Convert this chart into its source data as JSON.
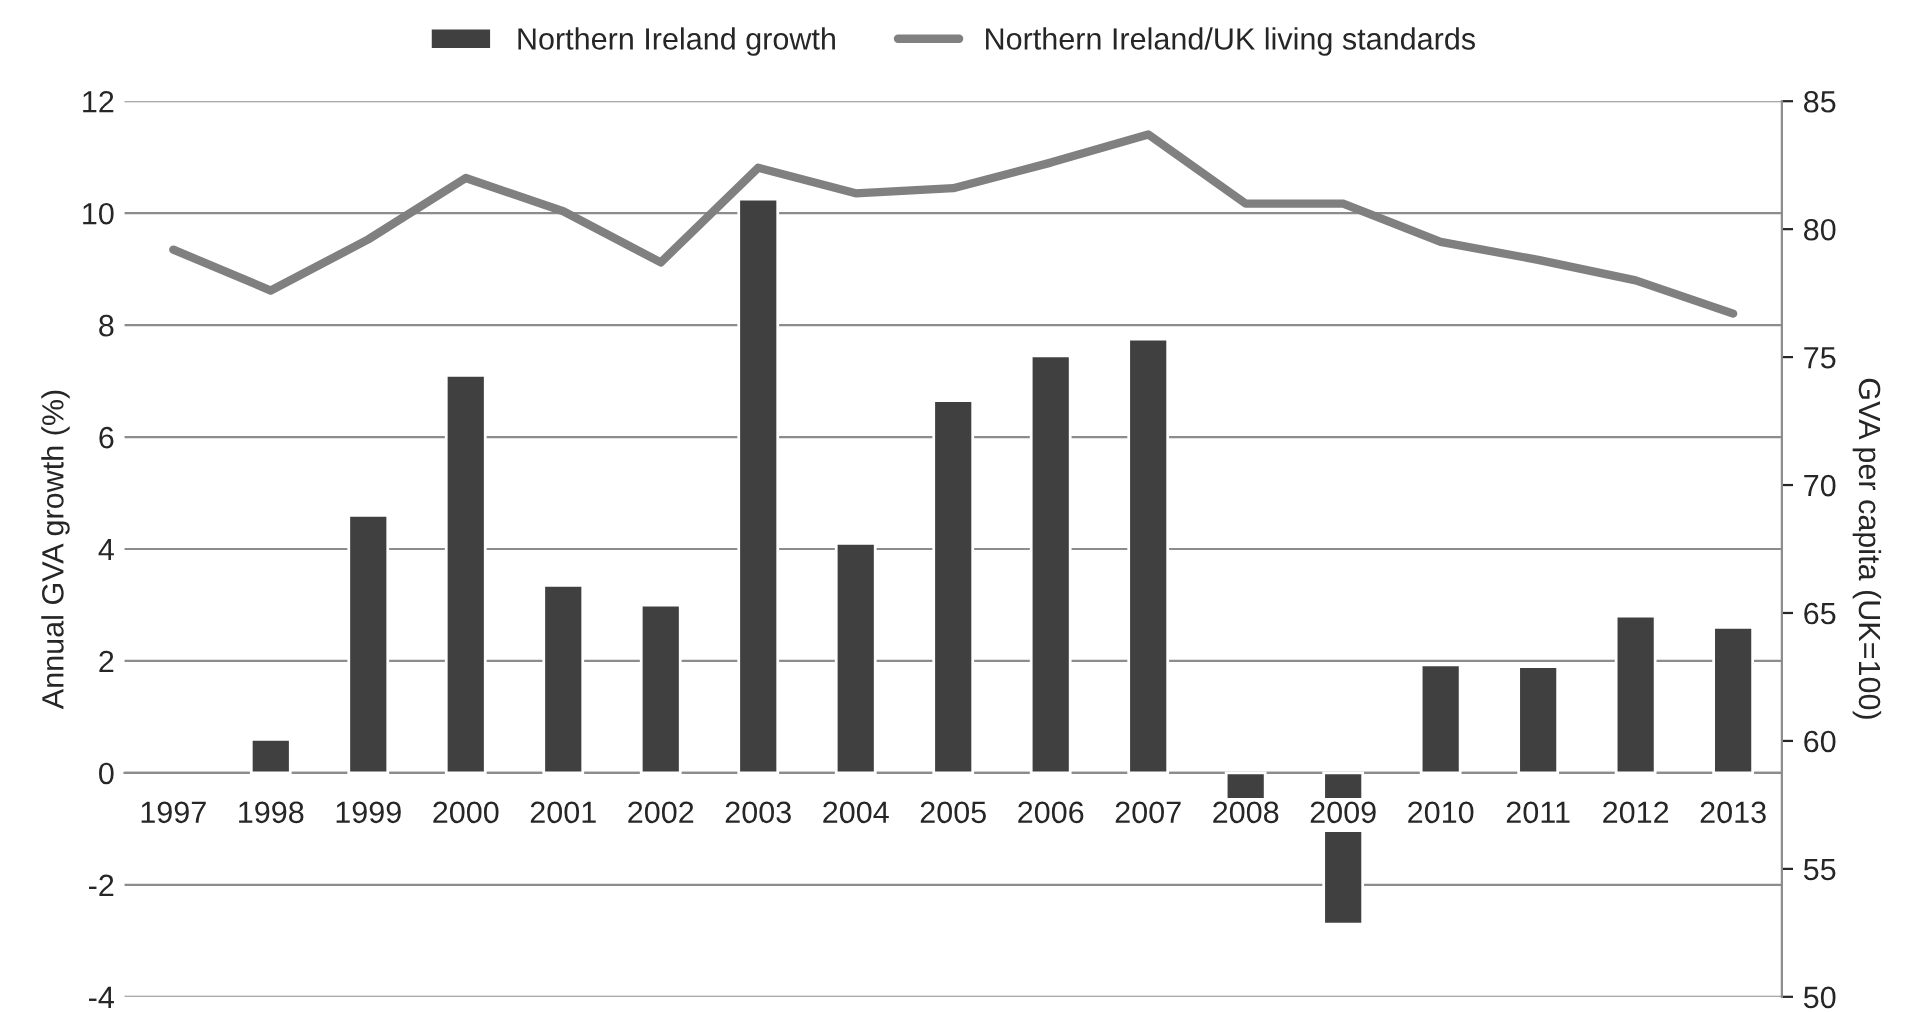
{
  "chart_data": {
    "type": "bar",
    "ylabel": "Annual GVA growth (%)",
    "y2label": "GVA per capita (UK=100)",
    "categories": [
      "1997",
      "1998",
      "1999",
      "2000",
      "2001",
      "2002",
      "2003",
      "2004",
      "2005",
      "2006",
      "2007",
      "2008",
      "2009",
      "2010",
      "2011",
      "2012",
      "2013"
    ],
    "series": [
      {
        "name": "Northern Ireland growth",
        "color": "#404040",
        "values": [
          null,
          0.6,
          4.6,
          7.1,
          3.35,
          3.0,
          10.25,
          4.1,
          6.65,
          7.45,
          7.75,
          -0.5,
          -2.7,
          1.93,
          1.9,
          2.8,
          2.6
        ]
      },
      {
        "name": "Northern Ireland/UK living standards",
        "type": "line",
        "axis": "y2",
        "color": "#808080",
        "values": [
          79.2,
          77.6,
          79.6,
          82.0,
          80.7,
          78.7,
          82.4,
          81.4,
          81.6,
          82.6,
          83.7,
          81.0,
          81.0,
          79.5,
          78.8,
          78.0,
          76.7
        ]
      }
    ],
    "ylim": [
      -4,
      12
    ],
    "yticks": [
      -4,
      -2,
      0,
      2,
      4,
      6,
      8,
      10,
      12
    ],
    "y2lim": [
      50,
      85
    ],
    "y2ticks": [
      50,
      55,
      60,
      65,
      70,
      75,
      80,
      85
    ],
    "grid": "y",
    "legend": "top",
    "marker": "none",
    "line_style": "solid"
  }
}
